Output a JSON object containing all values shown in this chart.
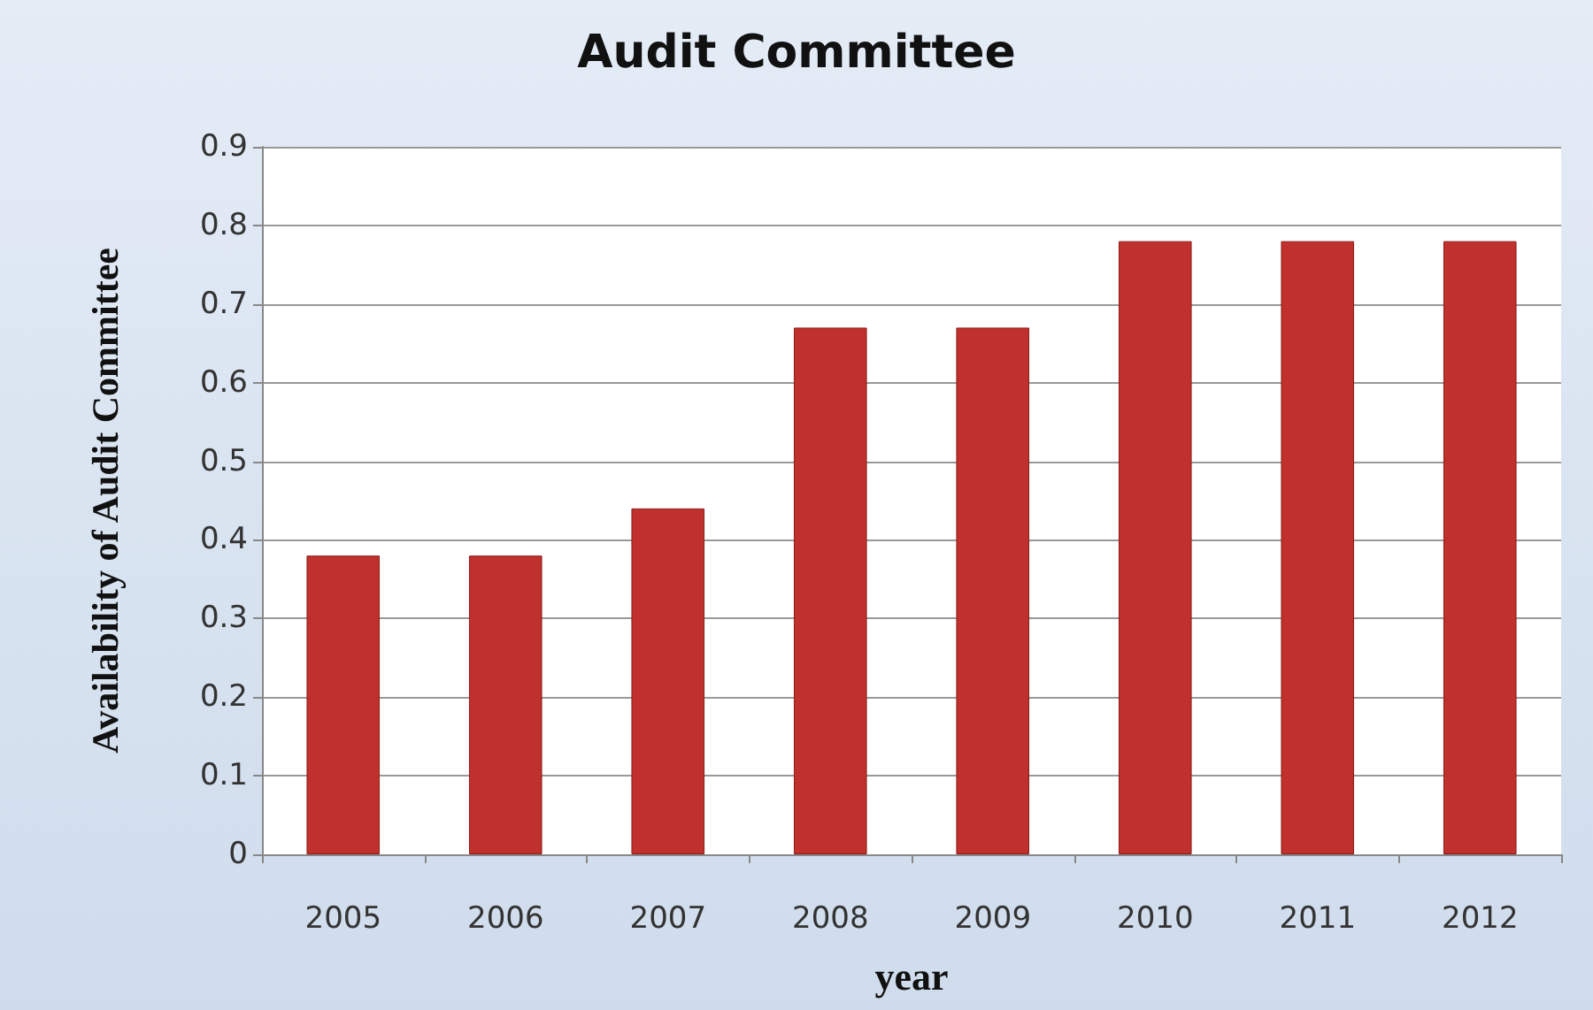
{
  "chart_data": {
    "type": "bar",
    "title": "Audit Committee",
    "xlabel": "year",
    "ylabel": "Availability of Audit Committee",
    "categories": [
      "2005",
      "2006",
      "2007",
      "2008",
      "2009",
      "2010",
      "2011",
      "2012"
    ],
    "values": [
      0.38,
      0.38,
      0.44,
      0.67,
      0.67,
      0.78,
      0.78,
      0.78
    ],
    "color": "#c0302c",
    "ylim": [
      0,
      0.9
    ],
    "yticks": [
      0,
      0.1,
      0.2,
      0.3,
      0.4,
      0.5,
      0.6,
      0.7,
      0.8,
      0.9
    ],
    "grid": "y"
  }
}
